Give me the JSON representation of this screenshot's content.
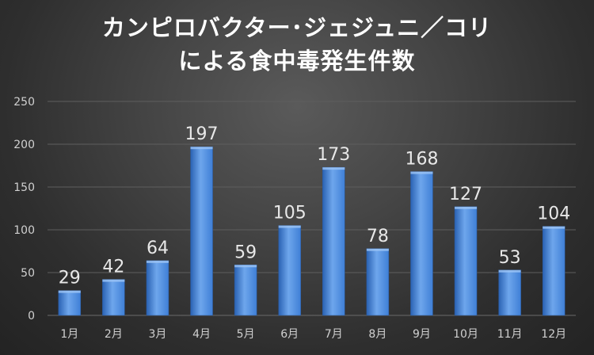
{
  "title_lines": [
    "カンピロバクター･ジェジュニ／コリ",
    "による食中毒発生件数"
  ],
  "colors": {
    "bar_top": "#6ea6ec",
    "bar_mid": "#3f7fd6",
    "bar_bottom": "#2a62b3",
    "gridline": "#5e5e5e",
    "axis_text": "#d0d0d0"
  },
  "chart_data": {
    "type": "bar",
    "title": "カンピロバクター･ジェジュニ／コリ による食中毒発生件数",
    "categories": [
      "1月",
      "2月",
      "3月",
      "4月",
      "5月",
      "6月",
      "7月",
      "8月",
      "9月",
      "10月",
      "11月",
      "12月"
    ],
    "values": [
      29,
      42,
      64,
      197,
      59,
      105,
      173,
      78,
      168,
      127,
      53,
      104
    ],
    "xlabel": "",
    "ylabel": "",
    "ylim": [
      0,
      250
    ],
    "yticks": [
      0,
      50,
      100,
      150,
      200,
      250
    ],
    "grid": true,
    "legend": "none"
  }
}
